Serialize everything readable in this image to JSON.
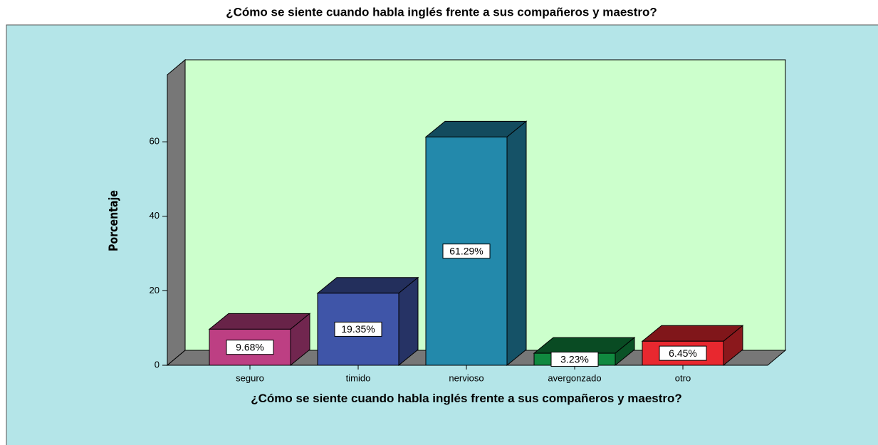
{
  "chart_data": {
    "type": "bar3d",
    "title": "¿Cómo se siente cuando habla inglés frente a sus compañeros y maestro?",
    "x_label": "¿Cómo se siente cuando habla inglés frente a sus compañeros y maestro?",
    "y_label": "Porcentaje",
    "categories": [
      "seguro",
      "timido",
      "nervioso",
      "avergonzado",
      "otro"
    ],
    "values": [
      9.68,
      19.35,
      61.29,
      3.23,
      6.45
    ],
    "value_labels": [
      "9.68%",
      "19.35%",
      "61.29%",
      "3.23%",
      "6.45%"
    ],
    "colors": [
      "#bd3f83",
      "#3f55a8",
      "#2389ab",
      "#10893f",
      "#e8282f"
    ],
    "ylim": [
      0,
      78
    ],
    "yticks": [
      0,
      20,
      40,
      60
    ]
  }
}
